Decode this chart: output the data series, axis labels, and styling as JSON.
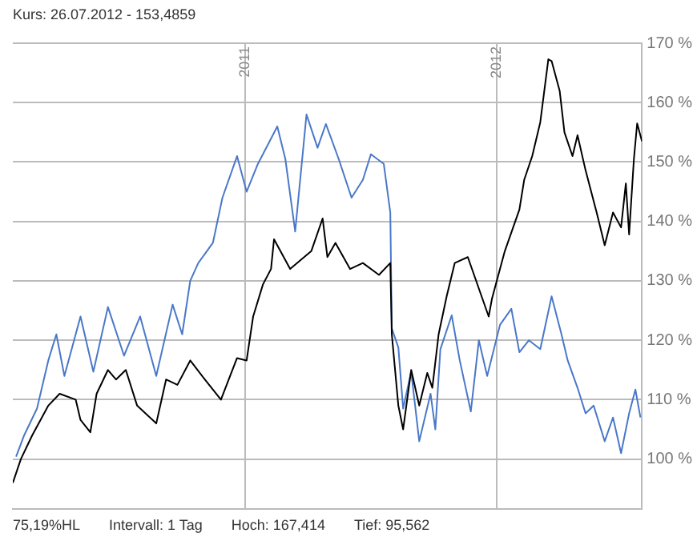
{
  "chart_data": {
    "type": "line",
    "title": "Kurs: 26.07.2012 - 153,4859",
    "annotations": [
      "75,19%HL",
      "Intervall: 1 Tag",
      "Hoch: 167,414",
      "Tief: 95,562"
    ],
    "series": [
      {
        "color": "#000000",
        "x": [
          2010.077,
          2010.109,
          2010.154,
          2010.218,
          2010.263,
          2010.327,
          2010.346,
          2010.385,
          2010.41,
          2010.455,
          2010.487,
          2010.526,
          2010.571,
          2010.647,
          2010.686,
          2010.731,
          2010.782,
          2010.84,
          2010.904,
          2010.968,
          2011.006,
          2011.032,
          2011.071,
          2011.103,
          2011.115,
          2011.179,
          2011.263,
          2011.308,
          2011.327,
          2011.359,
          2011.417,
          2011.468,
          2011.532,
          2011.577,
          2011.583,
          2011.609,
          2011.628,
          2011.66,
          2011.692,
          2011.724,
          2011.744,
          2011.769,
          2011.801,
          2011.833,
          2011.885,
          2011.968,
          2011.981,
          2012.032,
          2012.09,
          2012.109,
          2012.141,
          2012.173,
          2012.205,
          2012.218,
          2012.25,
          2012.269,
          2012.301,
          2012.321,
          2012.353,
          2012.397,
          2012.429,
          2012.462,
          2012.494,
          2012.513,
          2012.526,
          2012.545,
          2012.558,
          2012.577
        ],
        "values": [
          96,
          100,
          104,
          109,
          111,
          110,
          106.6,
          104.5,
          111,
          115,
          113.4,
          115,
          109,
          106,
          113.4,
          112.5,
          116.6,
          113.4,
          110,
          117,
          116.6,
          124,
          129.4,
          132,
          137,
          132,
          135,
          140.5,
          134,
          136.4,
          132,
          133,
          131,
          133,
          121,
          109,
          105,
          115,
          109,
          114.5,
          112,
          121,
          127.4,
          133,
          134,
          124,
          127,
          135,
          142,
          147,
          151,
          156.7,
          167.3,
          167,
          162,
          155,
          151,
          154.5,
          148.6,
          141.5,
          136,
          141.5,
          139,
          146.4,
          137.8,
          150.5,
          156.5,
          153.5
        ]
      },
      {
        "color": "#4a78c8",
        "x": [
          2010.09,
          2010.122,
          2010.173,
          2010.218,
          2010.25,
          2010.282,
          2010.346,
          2010.397,
          2010.455,
          2010.519,
          2010.583,
          2010.647,
          2010.712,
          2010.75,
          2010.782,
          2010.814,
          2010.872,
          2010.91,
          2010.968,
          2011.006,
          2011.051,
          2011.128,
          2011.16,
          2011.199,
          2011.244,
          2011.288,
          2011.321,
          2011.372,
          2011.423,
          2011.468,
          2011.5,
          2011.551,
          2011.577,
          2011.583,
          2011.609,
          2011.628,
          2011.66,
          2011.692,
          2011.737,
          2011.756,
          2011.776,
          2011.821,
          2011.853,
          2011.897,
          2011.929,
          2011.962,
          2012.013,
          2012.058,
          2012.09,
          2012.128,
          2012.173,
          2012.218,
          2012.256,
          2012.282,
          2012.321,
          2012.353,
          2012.385,
          2012.429,
          2012.462,
          2012.494,
          2012.526,
          2012.551,
          2012.571
        ],
        "values": [
          100.4,
          104,
          108.5,
          116.6,
          121,
          114,
          124,
          114.7,
          125.6,
          117.4,
          124,
          114,
          126,
          121,
          130,
          133,
          136.4,
          144,
          151,
          145,
          149.7,
          156,
          150.5,
          138.3,
          158,
          152.4,
          156.4,
          150.5,
          144,
          147,
          151.3,
          149.7,
          141.5,
          122,
          118.8,
          108.5,
          114.7,
          103,
          111,
          105,
          118.5,
          124.2,
          116.6,
          108,
          120,
          114,
          122.6,
          125.3,
          118,
          120,
          118.5,
          127.4,
          121.2,
          116.6,
          112,
          107.7,
          109,
          103,
          107,
          101,
          107.7,
          111.7,
          107
        ]
      }
    ],
    "xlim": [
      2010.077,
      2012.577
    ],
    "xticks": [
      2011,
      2012
    ],
    "ylim": [
      91.6,
      170
    ],
    "yticks": [
      {
        "value": 100,
        "label": "100 %"
      },
      {
        "value": 110,
        "label": "110 %"
      },
      {
        "value": 120,
        "label": "120 %"
      },
      {
        "value": 130,
        "label": "130 %"
      },
      {
        "value": 140,
        "label": "140 %"
      },
      {
        "value": 150,
        "label": "150 %"
      },
      {
        "value": 160,
        "label": "160 %"
      },
      {
        "value": 170,
        "label": "170 %"
      }
    ],
    "grid": true,
    "legend": false,
    "marker": "none",
    "line_style": "solid"
  }
}
